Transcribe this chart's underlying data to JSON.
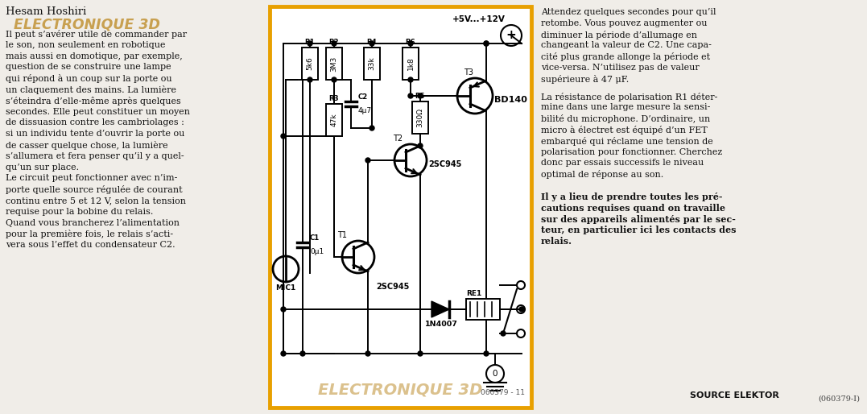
{
  "bg_color": "#f0ede8",
  "border_color": "#e8a000",
  "title_author": "Hesam Hoshiri",
  "title_main": "ELECTRONIQUE 3D",
  "title_color": "#c8a050",
  "text_color": "#1a1a2e",
  "body_color": "#111111",
  "left_text": [
    "Il peut s’avérer utile de commander par",
    "le son, non seulement en robotique",
    "mais aussi en domotique, par exemple,",
    "question de se construire une lampe",
    "qui répond à un coup sur la porte ou",
    "un claquement des mains. La lumière",
    "s’éteindra d’elle-même après quelques",
    "secondes. Elle peut constituer un moyen",
    "de dissuasion contre les cambriolages :",
    "si un individu tente d’ouvrir la porte ou",
    "de casser quelque chose, la lumière",
    "s’allumera et fera penser qu’il y a quel-",
    "qu’un sur place.",
    "Le circuit peut fonctionner avec n’im-",
    "porte quelle source régulée de courant",
    "continu entre 5 et 12 V, selon la tension",
    "requise pour la bobine du relais.",
    "Quand vous brancherez l’alimentation",
    "pour la première fois, le relais s’acti-",
    "vera sous l’effet du condensateur C2."
  ],
  "para1_lines": [
    "Attendez quelques secondes pour qu’il",
    "retombe. Vous pouvez augmenter ou",
    "diminuer la période d’allumage en",
    "changeant la valeur de C2. Une capa-",
    "cité plus grande allonge la période et",
    "vice-versa. N’utilisez pas de valeur",
    "supérieure à 47 μF."
  ],
  "para2_lines": [
    "La résistance de polarisation R1 déter-",
    "mine dans une large mesure la sensi-",
    "bilité du microphone. D’ordinaire, un",
    "micro à électret est équipé d’un FET",
    "embarqué qui réclame une tension de",
    "polarisation pour fonctionner. Cherchez",
    "donc par essais successifs le niveau",
    "optimal de réponse au son."
  ],
  "para3_lines": [
    "Il y a lieu de prendre toutes les pré-",
    "cautions requises quand on travaille",
    "sur des appareils alimentés par le sec-",
    "teur, en particulier ici les contacts des",
    "relais."
  ],
  "footer_left": "SOURCE ELEKTOR",
  "footer_right": "(060379-I)",
  "circuit_footer": "ELECTRONIQUE 3D",
  "circuit_code": "060379 - 11",
  "supply_label": "+5V...+12V"
}
